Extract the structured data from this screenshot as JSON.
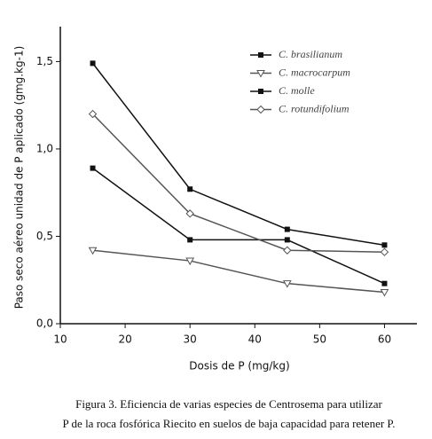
{
  "chart_data": {
    "type": "line",
    "x_label": "Dosis de P (mg/kg)",
    "y_label": "Paso seco aéreo unidad de P aplicado (gmg.kg-1)",
    "x": [
      15,
      30,
      45,
      60
    ],
    "series": [
      {
        "name": "C. brasilianum",
        "color": "#111111",
        "marker": "square",
        "values": [
          1.49,
          0.77,
          0.54,
          0.45
        ]
      },
      {
        "name": "C. macrocarpum",
        "color": "#555555",
        "marker": "triangle-down",
        "values": [
          0.42,
          0.36,
          0.23,
          0.18
        ]
      },
      {
        "name": "C. molle",
        "color": "#111111",
        "marker": "square",
        "values": [
          0.89,
          0.48,
          0.48,
          0.23
        ]
      },
      {
        "name": "C. rotundifolium",
        "color": "#555555",
        "marker": "diamond",
        "values": [
          1.2,
          0.63,
          0.42,
          0.41
        ]
      }
    ],
    "xlim": [
      10,
      65
    ],
    "xticks": [
      10,
      20,
      30,
      40,
      50,
      60
    ],
    "ylim": [
      0,
      1.7
    ],
    "yticks": [
      {
        "value": 0,
        "label": "0,0"
      },
      {
        "value": 0.5,
        "label": "0,5"
      },
      {
        "value": 1,
        "label": "1,0"
      },
      {
        "value": 1.5,
        "label": "1,5"
      }
    ],
    "caption": [
      "Figura 3. Eficiencia de varias especies de Centrosema para utilizar",
      "P de la roca fosfórica Riecito en suelos  de baja capacidad para retener P."
    ]
  }
}
